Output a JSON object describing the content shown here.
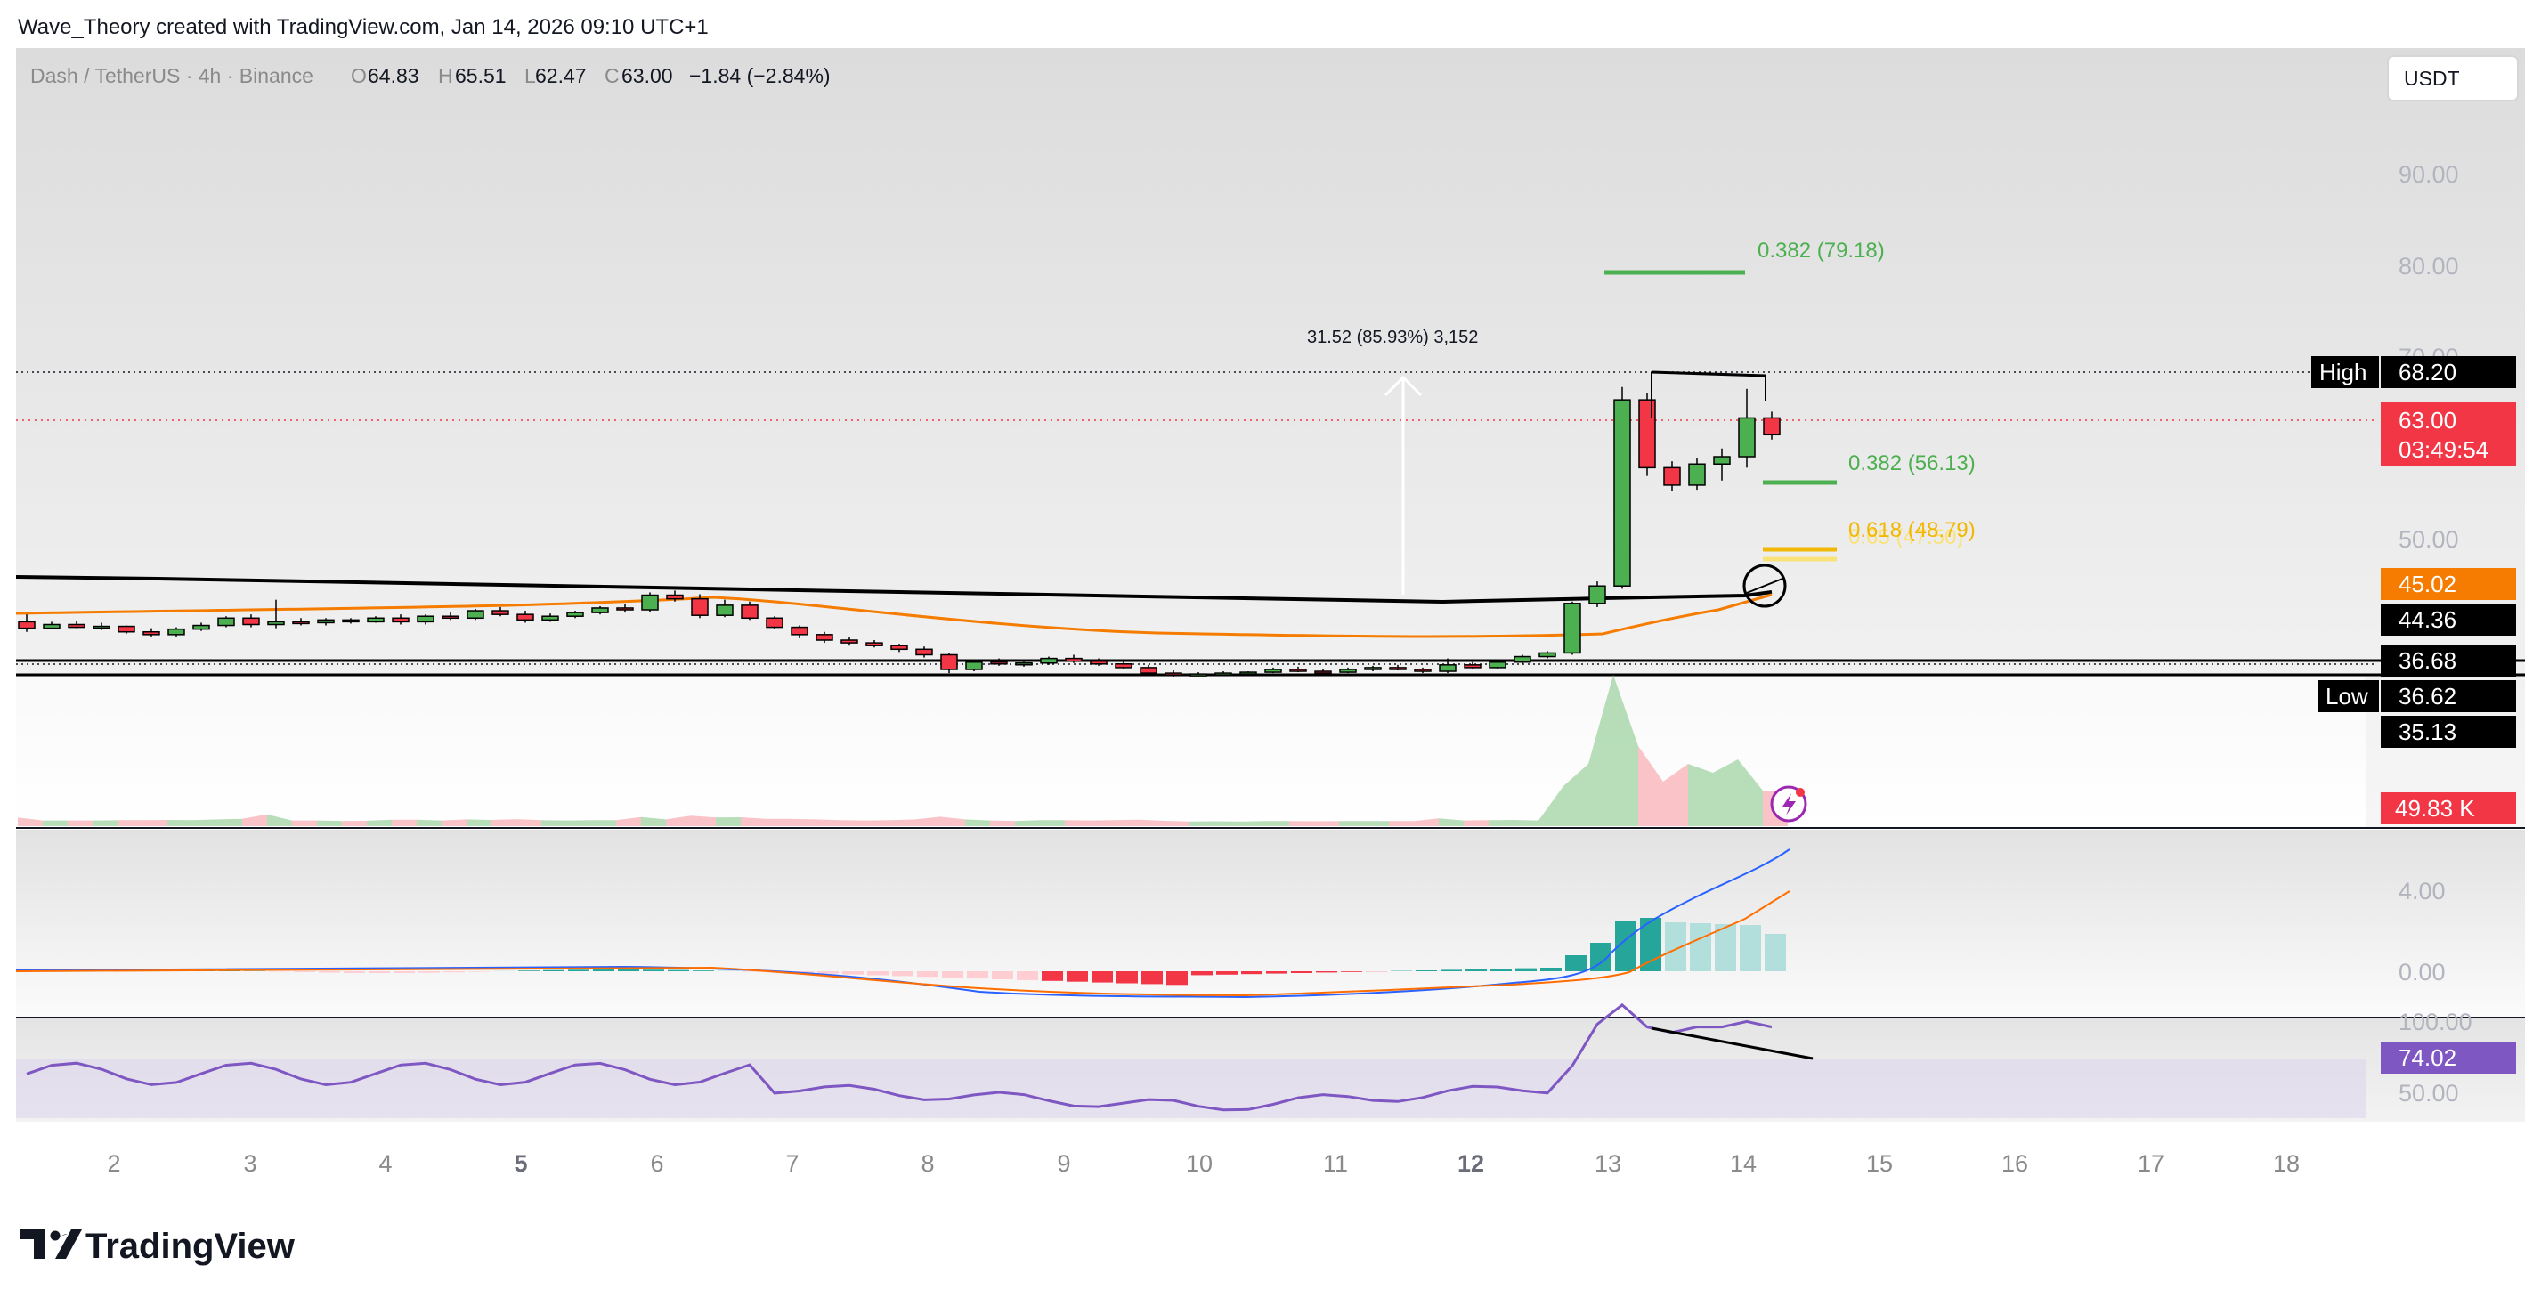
{
  "header": {
    "credit": "Wave_Theory created with TradingView.com, Jan 14, 2026 09:10 UTC+1"
  },
  "legend": {
    "symbol": "Dash / TetherUS · 4h · Binance",
    "o_label": "O",
    "open": "64.83",
    "h_label": "H",
    "high": "65.51",
    "l_label": "L",
    "low": "62.47",
    "c_label": "C",
    "close": "63.00",
    "change": "−1.84 (−2.84%)"
  },
  "currency_button": "USDT",
  "logo_text": "TradingView",
  "price_axis": {
    "ticks": [
      "90.00",
      "80.00",
      "70.00",
      "50.00"
    ],
    "high_label": "High",
    "high_value": "68.20",
    "last_price": "63.00",
    "countdown": "03:49:54",
    "ema_value": "45.02",
    "sma_value": "44.36",
    "level_1": "36.68",
    "low_label": "Low",
    "low_value": "36.62",
    "level_2": "35.13",
    "volume_value": "49.83 K"
  },
  "annotations": {
    "measure": "31.52 (85.93%) 3,152",
    "fib_upper": "0.382 (79.18)",
    "fib_lower": "0.382 (56.13)",
    "fib_618": "0.618 (48.79)",
    "fib_065": "0.65 (47.50)"
  },
  "macd_axis": [
    "4.00",
    "0.00"
  ],
  "rsi_axis": {
    "ticks": [
      "100.00",
      "50.00"
    ],
    "value": "74.02"
  },
  "time_axis": [
    "2",
    "3",
    "4",
    "5",
    "6",
    "7",
    "8",
    "9",
    "10",
    "11",
    "12",
    "13",
    "14",
    "15",
    "16",
    "17",
    "18"
  ],
  "colors": {
    "up": "#4caf50",
    "down": "#f23645",
    "ema": "#f57c00",
    "sma": "#000000",
    "rsi": "#7e57c2",
    "macd": "#2962ff",
    "signal": "#ff6d00",
    "fib_green": "#4caf50",
    "fib_gold": "#f2b705"
  },
  "chart_data": {
    "type": "candlestick",
    "symbol": "Dash / TetherUS",
    "interval": "4h",
    "exchange": "Binance",
    "ohlc_last": {
      "open": 64.83,
      "high": 65.51,
      "low": 62.47,
      "close": 63.0,
      "change": -1.84,
      "change_pct": -2.84
    },
    "candles": [
      [
        42.6,
        43.4,
        41.5,
        41.9
      ],
      [
        41.9,
        42.6,
        41.8,
        42.3
      ],
      [
        42.3,
        42.7,
        41.9,
        42.0
      ],
      [
        42.0,
        42.5,
        41.7,
        42.1
      ],
      [
        42.1,
        42.2,
        41.3,
        41.5
      ],
      [
        41.5,
        41.9,
        41.0,
        41.2
      ],
      [
        41.2,
        42.0,
        41.0,
        41.8
      ],
      [
        41.8,
        42.5,
        41.6,
        42.2
      ],
      [
        42.2,
        43.2,
        42.0,
        43.0
      ],
      [
        43.0,
        43.4,
        42.0,
        42.3
      ],
      [
        42.3,
        45.0,
        41.9,
        42.6
      ],
      [
        42.6,
        43.0,
        42.2,
        42.5
      ],
      [
        42.5,
        43.0,
        42.2,
        42.8
      ],
      [
        42.8,
        43.0,
        42.4,
        42.6
      ],
      [
        42.6,
        43.2,
        42.5,
        43.0
      ],
      [
        43.0,
        43.4,
        42.3,
        42.6
      ],
      [
        42.6,
        43.4,
        42.3,
        43.2
      ],
      [
        43.2,
        43.6,
        42.8,
        43.0
      ],
      [
        43.0,
        44.0,
        42.8,
        43.8
      ],
      [
        43.8,
        44.2,
        43.2,
        43.4
      ],
      [
        43.4,
        43.8,
        42.5,
        42.8
      ],
      [
        42.8,
        43.5,
        42.6,
        43.2
      ],
      [
        43.2,
        43.8,
        43.0,
        43.6
      ],
      [
        43.6,
        44.3,
        43.4,
        44.1
      ],
      [
        44.1,
        44.5,
        43.6,
        43.9
      ],
      [
        43.9,
        45.8,
        43.7,
        45.5
      ],
      [
        45.5,
        46.0,
        44.8,
        45.1
      ],
      [
        45.1,
        45.6,
        43.0,
        43.3
      ],
      [
        43.3,
        45.0,
        43.1,
        44.4
      ],
      [
        44.4,
        44.8,
        42.8,
        43.0
      ],
      [
        43.0,
        43.2,
        41.8,
        42.0
      ],
      [
        42.0,
        42.2,
        40.8,
        41.2
      ],
      [
        41.2,
        41.5,
        40.3,
        40.6
      ],
      [
        40.6,
        40.9,
        40.0,
        40.3
      ],
      [
        40.3,
        40.6,
        39.8,
        40.0
      ],
      [
        40.0,
        40.2,
        39.3,
        39.6
      ],
      [
        39.6,
        39.9,
        38.7,
        39.0
      ],
      [
        39.0,
        39.2,
        37.0,
        37.4
      ],
      [
        37.4,
        38.4,
        37.2,
        38.2
      ],
      [
        38.2,
        38.6,
        37.8,
        38.0
      ],
      [
        38.0,
        38.3,
        37.7,
        38.1
      ],
      [
        38.1,
        38.8,
        37.9,
        38.6
      ],
      [
        38.6,
        39.0,
        38.1,
        38.3
      ],
      [
        38.3,
        38.6,
        37.8,
        38.0
      ],
      [
        38.0,
        38.3,
        37.4,
        37.6
      ],
      [
        37.6,
        37.9,
        36.8,
        37.0
      ],
      [
        37.0,
        37.3,
        36.62,
        36.8
      ],
      [
        36.8,
        37.1,
        36.7,
        36.9
      ],
      [
        36.9,
        37.2,
        36.7,
        37.0
      ],
      [
        37.0,
        37.2,
        36.8,
        37.1
      ],
      [
        37.1,
        37.6,
        37.0,
        37.4
      ],
      [
        37.4,
        37.7,
        37.1,
        37.2
      ],
      [
        37.2,
        37.4,
        36.9,
        37.1
      ],
      [
        37.1,
        37.6,
        37.0,
        37.4
      ],
      [
        37.4,
        37.8,
        37.2,
        37.6
      ],
      [
        37.6,
        37.9,
        37.3,
        37.4
      ],
      [
        37.4,
        37.6,
        37.0,
        37.2
      ],
      [
        37.2,
        38.6,
        37.0,
        37.9
      ],
      [
        37.9,
        38.2,
        37.4,
        37.6
      ],
      [
        37.6,
        38.4,
        37.5,
        38.2
      ],
      [
        38.2,
        39.0,
        38.0,
        38.8
      ],
      [
        38.8,
        39.4,
        38.6,
        39.2
      ],
      [
        39.2,
        44.8,
        39.0,
        44.6
      ],
      [
        44.6,
        47.0,
        44.2,
        46.5
      ],
      [
        46.5,
        68.2,
        46.2,
        66.8
      ],
      [
        66.8,
        67.5,
        58.5,
        59.4
      ],
      [
        59.4,
        60.1,
        56.9,
        57.5
      ],
      [
        57.5,
        60.5,
        57.0,
        59.8
      ],
      [
        59.8,
        61.5,
        58.0,
        60.6
      ],
      [
        60.6,
        68.0,
        59.4,
        64.83
      ],
      [
        64.83,
        65.51,
        62.47,
        63.0
      ]
    ],
    "horizontal_levels": {
      "high": 68.2,
      "last": 63.0,
      "resistance": 36.68,
      "low": 36.62,
      "support": 35.13
    },
    "fibonacci": [
      {
        "ratio": 0.382,
        "price": 79.18
      },
      {
        "ratio": 0.382,
        "price": 56.13
      },
      {
        "ratio": 0.618,
        "price": 48.79
      },
      {
        "ratio": 0.65,
        "price": 47.5
      }
    ],
    "indicators": {
      "ema_last": 45.02,
      "sma_last": 44.36,
      "volume_last_k": 49.83,
      "rsi_last": 74.02
    },
    "measure": {
      "change": 31.52,
      "change_pct": 85.93,
      "ticks": 3152
    },
    "y_range": [
      32,
      98
    ],
    "x_ticks": [
      "2",
      "3",
      "4",
      "5",
      "6",
      "7",
      "8",
      "9",
      "10",
      "11",
      "12",
      "13",
      "14",
      "15",
      "16",
      "17",
      "18"
    ]
  }
}
